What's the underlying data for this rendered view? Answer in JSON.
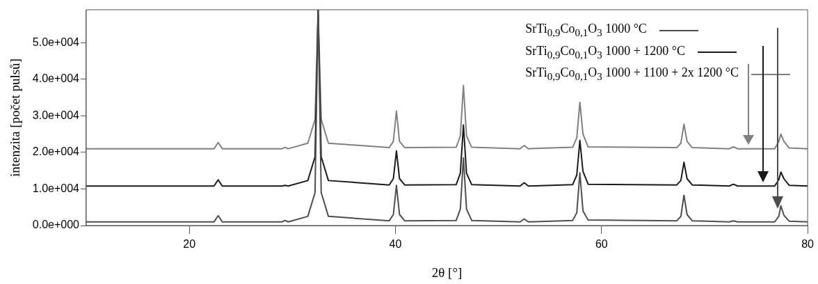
{
  "chart_data": {
    "type": "line",
    "xlabel": "2θ [°]",
    "ylabel": "intenzita [počet pulsů]",
    "x": [
      10,
      22.4,
      22.8,
      23.2,
      29.0,
      29.3,
      29.6,
      31.5,
      32.2,
      32.5,
      32.8,
      33.5,
      39.4,
      39.8,
      40.1,
      40.4,
      40.9,
      45.9,
      46.3,
      46.6,
      46.9,
      47.4,
      52.1,
      52.5,
      52.9,
      57.2,
      57.6,
      57.9,
      58.2,
      58.7,
      67.3,
      67.7,
      68.0,
      68.3,
      68.8,
      72.4,
      72.8,
      73.2,
      76.8,
      77.2,
      77.4,
      77.7,
      78.2,
      80
    ],
    "series": [
      {
        "name": "SrTi$_{0,9}$Co$_{0,1}$O$_{3}$ 1000 °C",
        "color": "#4d4d4d",
        "values": [
          1000,
          1000,
          2700,
          1000,
          1000,
          1400,
          1000,
          2500,
          9000,
          59000,
          9000,
          2500,
          1300,
          3000,
          11000,
          3000,
          1300,
          1400,
          4500,
          18500,
          4500,
          1400,
          1000,
          1800,
          1000,
          1400,
          3500,
          14400,
          4000,
          1500,
          1300,
          2500,
          8300,
          3000,
          1300,
          1000,
          1300,
          1000,
          1000,
          2500,
          5400,
          2800,
          1200,
          1000
        ]
      },
      {
        "name": "SrTi$_{0,9}$Co$_{0,1}$O$_{3}$ 1000 + 1200 °C",
        "color": "#1a1a1a",
        "values": [
          10800,
          10800,
          12500,
          10800,
          10800,
          11000,
          10800,
          12300,
          18800,
          59000,
          18800,
          12300,
          11100,
          12800,
          20400,
          12800,
          11100,
          11200,
          14300,
          27500,
          14300,
          11200,
          10800,
          11700,
          10800,
          11200,
          13800,
          23300,
          14800,
          11300,
          11100,
          12300,
          17300,
          12800,
          11100,
          10800,
          11300,
          10800,
          10800,
          12500,
          14600,
          12800,
          11000,
          10800
        ]
      },
      {
        "name": "SrTi$_{0,9}$Co$_{0,1}$O$_{3}$ 1000 + 1100 + 2x 1200 °C",
        "color": "#808080",
        "values": [
          21000,
          21000,
          22700,
          21000,
          21000,
          21400,
          21000,
          22500,
          29000,
          59000,
          29000,
          22500,
          21300,
          23000,
          31300,
          23000,
          21300,
          21400,
          24500,
          38300,
          24500,
          21400,
          21000,
          21900,
          21000,
          21400,
          24000,
          33700,
          25000,
          21500,
          21300,
          22500,
          27700,
          23000,
          21300,
          21000,
          21500,
          21000,
          21000,
          23000,
          25000,
          23000,
          21200,
          21000
        ]
      }
    ],
    "xlim": [
      10,
      80
    ],
    "xticks": [
      20,
      40,
      60,
      80
    ],
    "ylim": [
      0,
      59000
    ],
    "yticks": [
      {
        "value": 0,
        "label": "0.0e+000"
      },
      {
        "value": 10000,
        "label": "1.0e+004"
      },
      {
        "value": 20000,
        "label": "2.0e+004"
      },
      {
        "value": 30000,
        "label": "3.0e+004"
      },
      {
        "value": 40000,
        "label": "4.0e+004"
      },
      {
        "value": 50000,
        "label": "5.0e+004"
      }
    ],
    "grid": false,
    "legend": "top right",
    "marker": "none",
    "line_style": "solid"
  }
}
